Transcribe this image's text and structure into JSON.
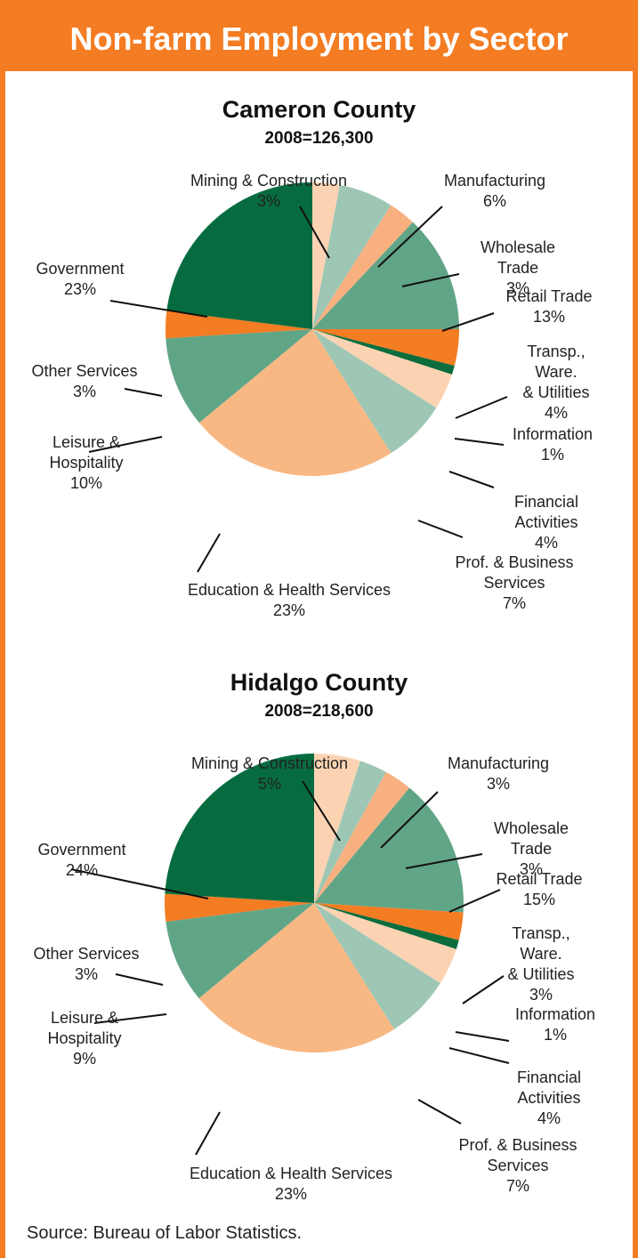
{
  "header": {
    "title": "Non-farm Employment by Sector"
  },
  "chart_data": [
    {
      "type": "pie",
      "title": "Cameron County",
      "subtitle": "2008=126,300",
      "categories": [
        "Mining & Construction",
        "Manufacturing",
        "Wholesale Trade",
        "Retail Trade",
        "Transp., Ware.\n& Utilities",
        "Information",
        "Financial Activities",
        "Prof. & Business\nServices",
        "Education & Health Services",
        "Leisure &\nHospitality",
        "Other Services",
        "Government"
      ],
      "values": [
        3,
        6,
        3,
        13,
        4,
        1,
        4,
        7,
        23,
        10,
        3,
        23
      ],
      "value_labels": [
        "3%",
        "6%",
        "3%",
        "13%",
        "4%",
        "1%",
        "4%",
        "7%",
        "23%",
        "10%",
        "3%",
        "23%"
      ],
      "colors": [
        "#fcd3b2",
        "#9ec6b4",
        "#f8b080",
        "#61a587",
        "#f47c22",
        "#0b6d3c",
        "#fcd3b2",
        "#9ec6b4",
        "#f8b884",
        "#61a587",
        "#f47c22",
        "#066c40"
      ]
    },
    {
      "type": "pie",
      "title": "Hidalgo County",
      "subtitle": "2008=218,600",
      "categories": [
        "Mining & Construction",
        "Manufacturing",
        "Wholesale Trade",
        "Retail Trade",
        "Transp., Ware.\n& Utilities",
        "Information",
        "Financial Activities",
        "Prof. & Business\nServices",
        "Education & Health Services",
        "Leisure &\nHospitality",
        "Other Services",
        "Government"
      ],
      "values": [
        5,
        3,
        3,
        15,
        3,
        1,
        4,
        7,
        23,
        9,
        3,
        24
      ],
      "value_labels": [
        "5%",
        "3%",
        "3%",
        "15%",
        "3%",
        "1%",
        "4%",
        "7%",
        "23%",
        "9%",
        "3%",
        "24%"
      ],
      "colors": [
        "#fcd3b2",
        "#9ec6b4",
        "#f8b080",
        "#61a587",
        "#f47c22",
        "#0b6d3c",
        "#fcd3b2",
        "#9ec6b4",
        "#f8b884",
        "#61a587",
        "#f47c22",
        "#066c40"
      ]
    }
  ],
  "footer": {
    "source": "Source: Bureau of Labor Statistics."
  }
}
